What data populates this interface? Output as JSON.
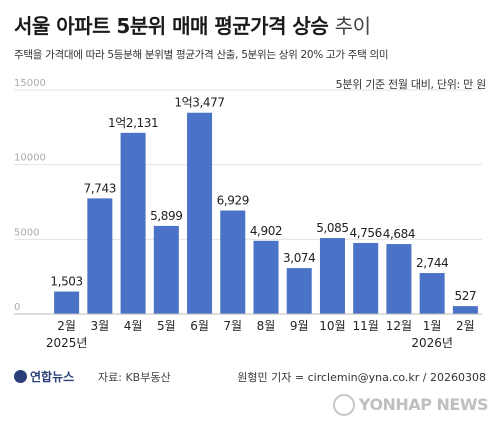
{
  "header": {
    "title": "서울 아파트 5분위 매매 평균가격 상승",
    "title_accent": "추이",
    "subtitle": "주택을 가격대에 따라 5등분해 분위별 평균가격 산출, 5분위는 상위 20% 고가 주택 의미",
    "unit_note": "5분위 기준 전월 대비, 단위: 만 원"
  },
  "chart_data": {
    "type": "bar",
    "categories": [
      "2월",
      "3월",
      "4월",
      "5월",
      "6월",
      "7월",
      "8월",
      "9월",
      "10월",
      "11월",
      "12월",
      "1월",
      "2월"
    ],
    "year_labels": [
      {
        "index": 0,
        "text": "2025년"
      },
      {
        "index": 11,
        "text": "2026년"
      }
    ],
    "values": [
      1503,
      7743,
      12131,
      5899,
      13477,
      6929,
      4902,
      3074,
      5085,
      4756,
      4684,
      2744,
      527
    ],
    "value_labels": [
      "1,503",
      "7,743",
      "1억2,131",
      "5,899",
      "1억3,477",
      "6,929",
      "4,902",
      "3,074",
      "5,085",
      "4,756",
      "4,684",
      "2,744",
      "527"
    ],
    "y_ticks": [
      0,
      5000,
      10000,
      15000
    ],
    "ylim": [
      0,
      15000
    ],
    "grid": true,
    "bar_color": "#4a72c6",
    "grid_color": "#e3e3e3"
  },
  "footer": {
    "logo": "연합뉴스",
    "source": "자료: KB부동산",
    "credit": "원형민 기자 = circlemin@yna.co.kr / 20260308",
    "watermark": "YONHAP NEWS"
  }
}
